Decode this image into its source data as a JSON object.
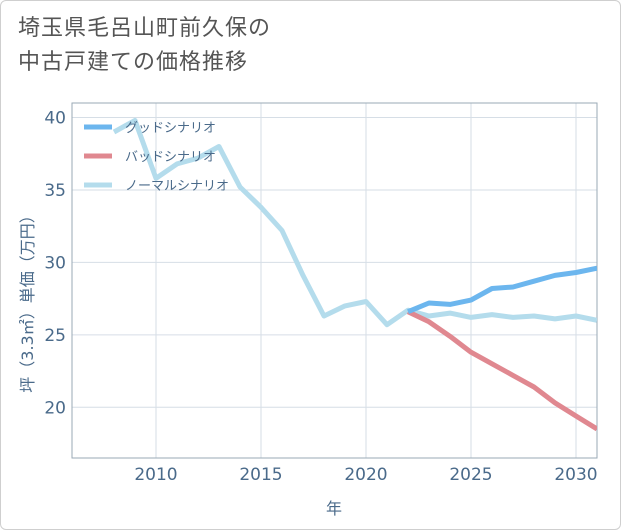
{
  "title_line1": "埼玉県毛呂山町前久保の",
  "title_line2": "中古戸建ての価格推移",
  "chart_data": {
    "type": "line",
    "xlabel": "年",
    "ylabel": "坪（3.3㎡）単価（万円）",
    "xlim": [
      2006,
      2031
    ],
    "ylim": [
      16.5,
      41
    ],
    "xticks": [
      2010,
      2015,
      2020,
      2025,
      2030
    ],
    "yticks": [
      20,
      25,
      30,
      35,
      40
    ],
    "grid": true,
    "legend_position": "top-left",
    "series": [
      {
        "name": "グッドシナリオ",
        "color": "#6cb6ee",
        "x": [
          2022,
          2023,
          2024,
          2025,
          2026,
          2027,
          2028,
          2029,
          2030,
          2031
        ],
        "y": [
          26.6,
          27.2,
          27.1,
          27.4,
          28.2,
          28.3,
          28.7,
          29.1,
          29.3,
          29.6
        ]
      },
      {
        "name": "バッドシナリオ",
        "color": "#e08890",
        "x": [
          2022,
          2023,
          2024,
          2025,
          2026,
          2027,
          2028,
          2029,
          2030,
          2031
        ],
        "y": [
          26.6,
          25.9,
          24.9,
          23.8,
          23.0,
          22.2,
          21.4,
          20.3,
          19.4,
          18.5
        ]
      },
      {
        "name": "ノーマルシナリオ",
        "color": "#b4dcec",
        "x": [
          2008,
          2009,
          2010,
          2011,
          2012,
          2013,
          2014,
          2015,
          2016,
          2017,
          2018,
          2019,
          2020,
          2021,
          2022,
          2023,
          2024,
          2025,
          2026,
          2027,
          2028,
          2029,
          2030,
          2031
        ],
        "y": [
          39.0,
          39.8,
          35.8,
          36.8,
          37.2,
          38.0,
          35.2,
          33.8,
          32.2,
          29.1,
          26.3,
          27.0,
          27.3,
          25.7,
          26.7,
          26.3,
          26.5,
          26.2,
          26.4,
          26.2,
          26.3,
          26.1,
          26.3,
          26.0
        ]
      }
    ]
  }
}
